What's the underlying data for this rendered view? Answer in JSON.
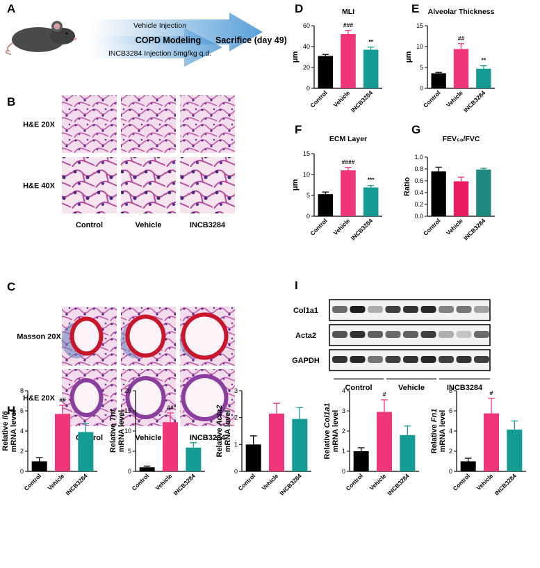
{
  "panel_letters": [
    "A",
    "B",
    "C",
    "D",
    "E",
    "F",
    "G",
    "H",
    "I"
  ],
  "schematic": {
    "top": "Vehicle Injection",
    "middle": "COPD Modeling",
    "bottom": "INCB3284 Injection 5mg/kg q.d.",
    "end": "Sacrifice (day 49)"
  },
  "histology_b": {
    "rows": [
      "H&E 20X",
      "H&E 40X"
    ],
    "columns": [
      "Control",
      "Vehicle",
      "INCB3284"
    ]
  },
  "histology_c": {
    "rows": [
      "Masson 20X",
      "H&E 20X"
    ],
    "columns": [
      "Control",
      "Vehicle",
      "INCB3284"
    ]
  },
  "western_blot": {
    "bands": [
      "Col1a1",
      "Acta2",
      "GAPDH"
    ],
    "groups": [
      "Control",
      "Vehicle",
      "INCB3284"
    ]
  },
  "chart_data": [
    {
      "type": "bar",
      "title": "MLI",
      "ylabel": "μm",
      "categories": [
        "Control",
        "Vehicle",
        "INCB3284"
      ],
      "values": [
        31,
        52,
        37
      ],
      "errors": [
        1.5,
        3.5,
        2.5
      ],
      "colors": [
        "#000000",
        "#f0357a",
        "#149c94"
      ],
      "annotations": [
        null,
        "###",
        "**"
      ],
      "ylim": [
        0,
        60
      ],
      "yticks": [
        0,
        20,
        40,
        60
      ]
    },
    {
      "type": "bar",
      "title": "Alveolar Thickness",
      "ylabel": "μm",
      "categories": [
        "Control",
        "Vehicle",
        "INCB3284"
      ],
      "values": [
        3.6,
        9.4,
        4.7
      ],
      "errors": [
        0.2,
        1.3,
        0.7
      ],
      "colors": [
        "#000000",
        "#f0357a",
        "#149c94"
      ],
      "annotations": [
        null,
        "##",
        "**"
      ],
      "ylim": [
        0,
        15
      ],
      "yticks": [
        0,
        5,
        10,
        15
      ]
    },
    {
      "type": "bar",
      "title": "ECM Layer",
      "ylabel": "μm",
      "categories": [
        "Control",
        "Vehicle",
        "INCB3284"
      ],
      "values": [
        5.3,
        11,
        6.9
      ],
      "errors": [
        0.5,
        0.7,
        0.5
      ],
      "colors": [
        "#000000",
        "#f0357a",
        "#149c94"
      ],
      "annotations": [
        null,
        "####",
        "***"
      ],
      "ylim": [
        0,
        15
      ],
      "yticks": [
        0,
        5,
        10,
        15
      ]
    },
    {
      "type": "bar",
      "title": "FEV₅₀/FVC",
      "ylabel": "Ratio",
      "categories": [
        "Control",
        "Vehicle",
        "INCB3284"
      ],
      "values": [
        0.76,
        0.59,
        0.79
      ],
      "errors": [
        0.07,
        0.07,
        0.02
      ],
      "colors": [
        "#000000",
        "#ec1c63",
        "#1e8a7e"
      ],
      "ylim": [
        0,
        1
      ],
      "yticks": [
        {
          "value": 0,
          "label": "0.0"
        },
        0.2,
        0.4,
        0.6,
        0.8,
        {
          "value": 1,
          "label": "1.0"
        }
      ]
    },
    {
      "type": "bar",
      "ylabel": "Relative",
      "gene": "Il6",
      "ylabel2": "mRNA level",
      "categories": [
        "Control",
        "Vehicle",
        "INCB3284"
      ],
      "values": [
        1,
        5.7,
        3.9
      ],
      "errors": [
        0.35,
        0.85,
        0.85
      ],
      "colors": [
        "#000000",
        "#f0357a",
        "#149c94"
      ],
      "annotations": [
        null,
        "##",
        null
      ],
      "ylim": [
        0,
        8
      ],
      "yticks": [
        0,
        2,
        4,
        6,
        8
      ]
    },
    {
      "type": "bar",
      "ylabel": "Relative",
      "gene": "Tnf",
      "ylabel2": "mRNA level",
      "categories": [
        "Control",
        "Vehicle",
        "INCB3284"
      ],
      "values": [
        1,
        12.2,
        5.9
      ],
      "errors": [
        0.3,
        2.3,
        1.2
      ],
      "colors": [
        "#000000",
        "#f0357a",
        "#149c94"
      ],
      "annotations": [
        null,
        "##",
        "*"
      ],
      "ylim": [
        0,
        20
      ],
      "yticks": [
        0,
        5,
        10,
        15,
        20
      ]
    },
    {
      "type": "bar",
      "ylabel": "Relative",
      "gene": "Acta2",
      "ylabel2": "mRNA level",
      "categories": [
        "Control",
        "Vehicle",
        "INCB3284"
      ],
      "values": [
        1,
        2.15,
        1.95
      ],
      "errors": [
        0.32,
        0.38,
        0.42
      ],
      "colors": [
        "#000000",
        "#f0357a",
        "#149c94"
      ],
      "ylim": [
        0,
        3
      ],
      "yticks": [
        0,
        1,
        2,
        3
      ]
    },
    {
      "type": "bar",
      "ylabel": "Relative",
      "gene": "Col1a1",
      "ylabel2": "mRNA level",
      "categories": [
        "Control",
        "Vehicle",
        "INCB3284"
      ],
      "values": [
        1,
        2.95,
        1.8
      ],
      "errors": [
        0.17,
        0.6,
        0.45
      ],
      "colors": [
        "#000000",
        "#f0357a",
        "#149c94"
      ],
      "annotations": [
        null,
        "#",
        null
      ],
      "ylim": [
        0,
        4
      ],
      "yticks": [
        0,
        1,
        2,
        3,
        4
      ]
    },
    {
      "type": "bar",
      "ylabel": "Relative",
      "gene": "Fn1",
      "ylabel2": "mRNA level",
      "categories": [
        "Control",
        "Vehicle",
        "INCB3284"
      ],
      "values": [
        1,
        5.75,
        4.15
      ],
      "errors": [
        0.3,
        1.5,
        0.85
      ],
      "colors": [
        "#000000",
        "#f0357a",
        "#149c94"
      ],
      "annotations": [
        null,
        "#",
        null
      ],
      "ylim": [
        0,
        8
      ],
      "yticks": [
        0,
        2,
        4,
        6,
        8
      ]
    }
  ]
}
